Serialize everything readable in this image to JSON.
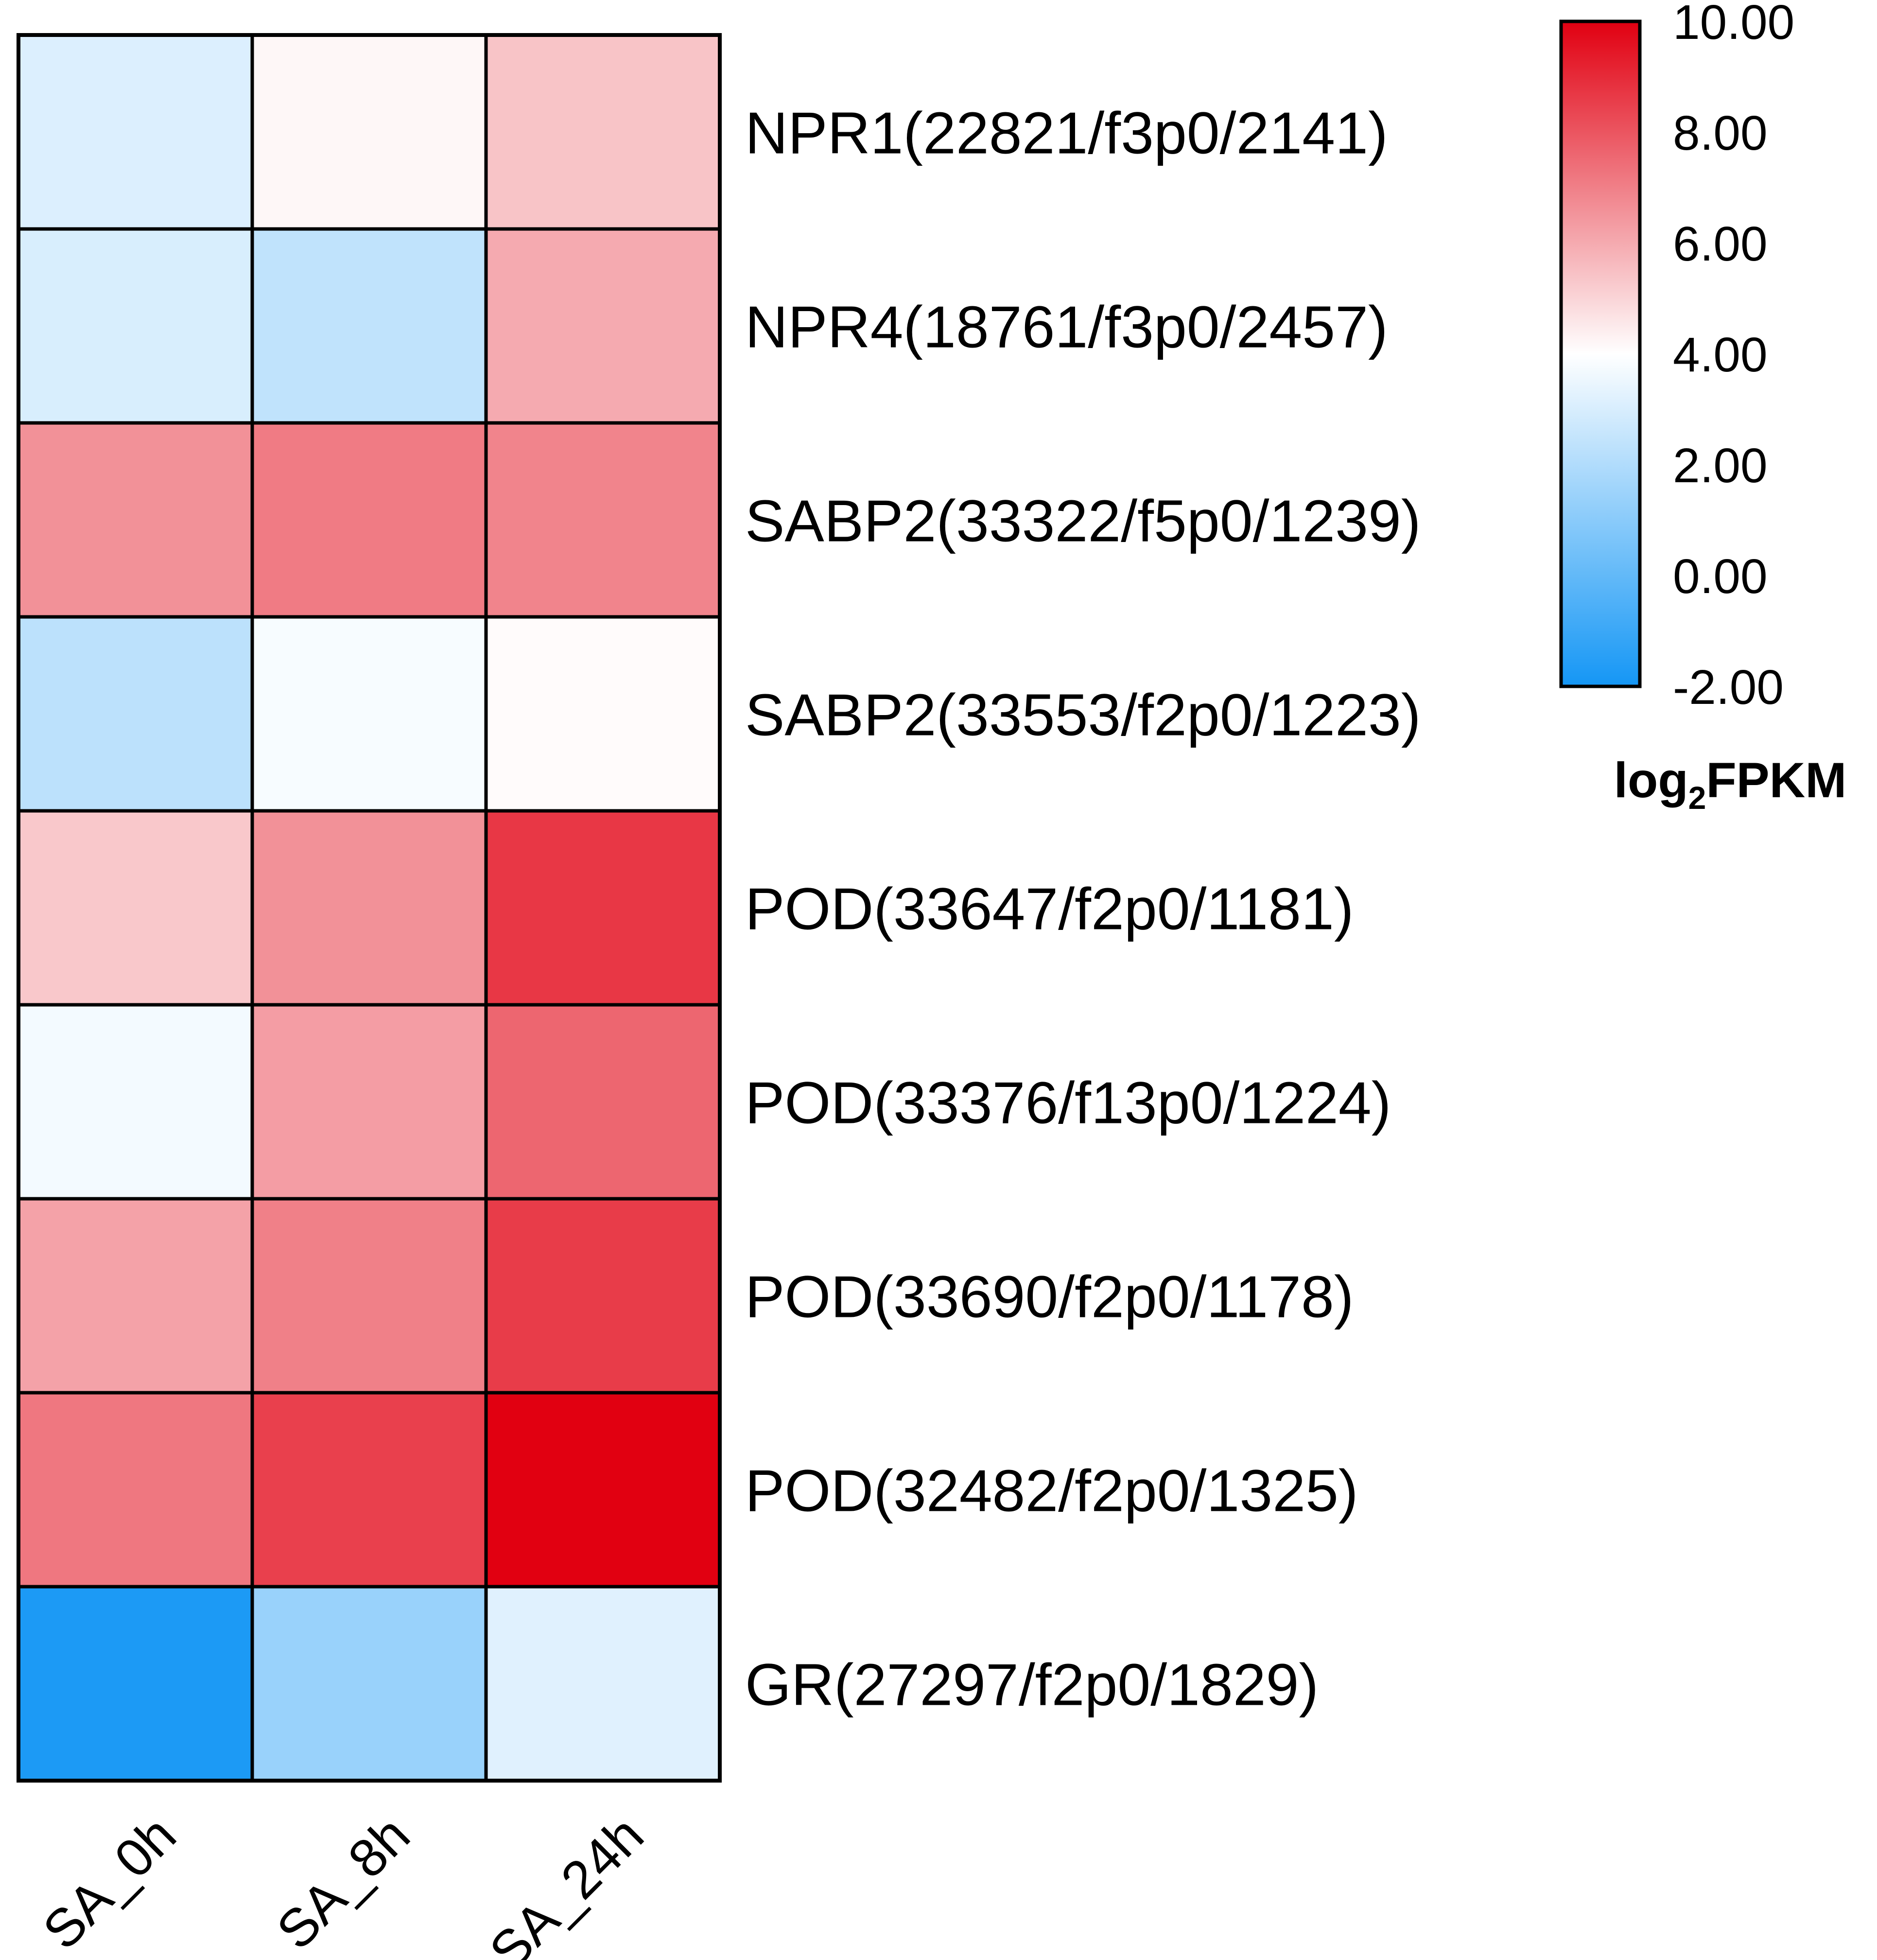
{
  "chart_data": {
    "type": "heatmap",
    "columns": [
      "SA_0h",
      "SA_8h",
      "SA_24h"
    ],
    "rows": [
      "NPR1(22821/f3p0/2141)",
      "NPR4(18761/f3p0/2457)",
      "SABP2(33322/f5p0/1239)",
      "SABP2(33553/f2p0/1223)",
      "POD(33647/f2p0/1181)",
      "POD(33376/f13p0/1224)",
      "POD(33690/f2p0/1178)",
      "POD(32482/f2p0/1325)",
      "GR(27297/f2p0/1829)"
    ],
    "values": [
      [
        3.1,
        4.2,
        5.4
      ],
      [
        3.0,
        2.4,
        6.0
      ],
      [
        6.6,
        7.1,
        6.9
      ],
      [
        2.3,
        3.8,
        4.1
      ],
      [
        5.3,
        6.6,
        8.7
      ],
      [
        3.7,
        6.3,
        7.6
      ],
      [
        6.2,
        7.0,
        8.6
      ],
      [
        7.2,
        8.5,
        10.0
      ],
      [
        -1.8,
        1.4,
        3.2
      ]
    ],
    "color_scale": {
      "min": -2.0,
      "max": 10.0,
      "mid": 4.0,
      "low_color": "#1496f5",
      "mid_color": "#ffffff",
      "high_color": "#e10011",
      "ticks": [
        "10.00",
        "8.00",
        "6.00",
        "4.00",
        "2.00",
        "0.00",
        "-2.00"
      ],
      "title_main": "log",
      "title_sub": "2",
      "title_rest": "FPKM",
      "position": "top-right"
    },
    "xlabel": "",
    "ylabel": "",
    "title": ""
  }
}
